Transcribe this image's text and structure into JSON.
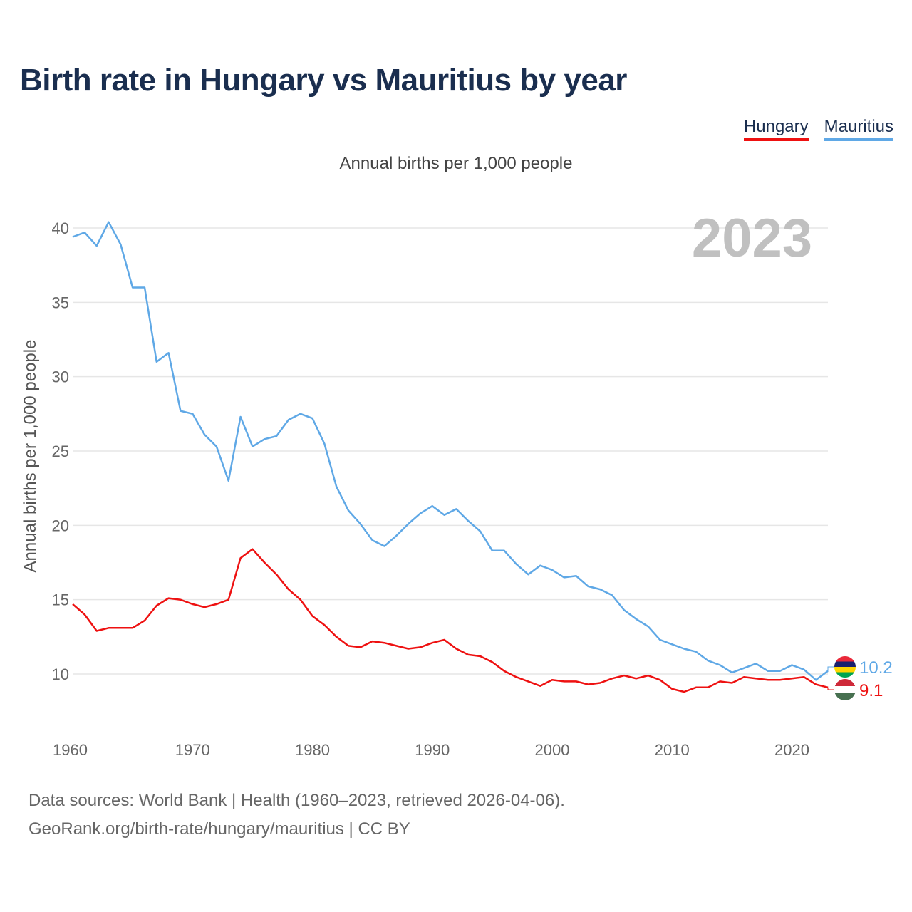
{
  "title": "Birth rate in Hungary vs Mauritius by year",
  "subtitle": "Annual births per 1,000 people",
  "legend": [
    {
      "label": "Hungary",
      "color": "#ee1111"
    },
    {
      "label": "Mauritius",
      "color": "#5fa8e6"
    }
  ],
  "footer": {
    "line1": "Data sources: World Bank | Health (1960–2023, retrieved 2026-04-06).",
    "line2": "GeoRank.org/birth-rate/hungary/mauritius | CC BY"
  },
  "chart_data": {
    "type": "line",
    "title": "Birth rate in Hungary vs Mauritius by year",
    "ylabel": "Annual births per 1,000 people",
    "xlabel": "",
    "xlim": [
      1960,
      2023
    ],
    "ylim": [
      7,
      42
    ],
    "yticks": [
      10,
      15,
      20,
      25,
      30,
      35,
      40
    ],
    "xticks": [
      1960,
      1970,
      1980,
      1990,
      2000,
      2010,
      2020
    ],
    "grid": true,
    "year_watermark": "2023",
    "x": [
      1960,
      1961,
      1962,
      1963,
      1964,
      1965,
      1966,
      1967,
      1968,
      1969,
      1970,
      1971,
      1972,
      1973,
      1974,
      1975,
      1976,
      1977,
      1978,
      1979,
      1980,
      1981,
      1982,
      1983,
      1984,
      1985,
      1986,
      1987,
      1988,
      1989,
      1990,
      1991,
      1992,
      1993,
      1994,
      1995,
      1996,
      1997,
      1998,
      1999,
      2000,
      2001,
      2002,
      2003,
      2004,
      2005,
      2006,
      2007,
      2008,
      2009,
      2010,
      2011,
      2012,
      2013,
      2014,
      2015,
      2016,
      2017,
      2018,
      2019,
      2020,
      2021,
      2022,
      2023
    ],
    "series": [
      {
        "name": "Hungary",
        "color": "#ee1111",
        "end_label": "9.1",
        "values": [
          14.7,
          14.0,
          12.9,
          13.1,
          13.1,
          13.1,
          13.6,
          14.6,
          15.1,
          15.0,
          14.7,
          14.5,
          14.7,
          15.0,
          17.8,
          18.4,
          17.5,
          16.7,
          15.7,
          15.0,
          13.9,
          13.3,
          12.5,
          11.9,
          11.8,
          12.2,
          12.1,
          11.9,
          11.7,
          11.8,
          12.1,
          12.3,
          11.7,
          11.3,
          11.2,
          10.8,
          10.2,
          9.8,
          9.5,
          9.2,
          9.6,
          9.5,
          9.5,
          9.3,
          9.4,
          9.7,
          9.9,
          9.7,
          9.9,
          9.6,
          9.0,
          8.8,
          9.1,
          9.1,
          9.5,
          9.4,
          9.8,
          9.7,
          9.6,
          9.6,
          9.7,
          9.8,
          9.3,
          9.1
        ]
      },
      {
        "name": "Mauritius",
        "color": "#5fa8e6",
        "end_label": "10.2",
        "values": [
          39.4,
          39.7,
          38.8,
          40.4,
          38.9,
          36.0,
          36.0,
          31.0,
          31.6,
          27.7,
          27.5,
          26.1,
          25.3,
          23.0,
          27.3,
          25.3,
          25.8,
          26.0,
          27.1,
          27.5,
          27.2,
          25.5,
          22.6,
          21.0,
          20.1,
          19.0,
          18.6,
          19.3,
          20.1,
          20.8,
          21.3,
          20.7,
          21.1,
          20.3,
          19.6,
          18.3,
          18.3,
          17.4,
          16.7,
          17.3,
          17.0,
          16.5,
          16.6,
          15.9,
          15.7,
          15.3,
          14.3,
          13.7,
          13.2,
          12.3,
          12.0,
          11.7,
          11.5,
          10.9,
          10.6,
          10.1,
          10.4,
          10.7,
          10.2,
          10.2,
          10.6,
          10.3,
          9.6,
          10.2
        ]
      }
    ]
  }
}
